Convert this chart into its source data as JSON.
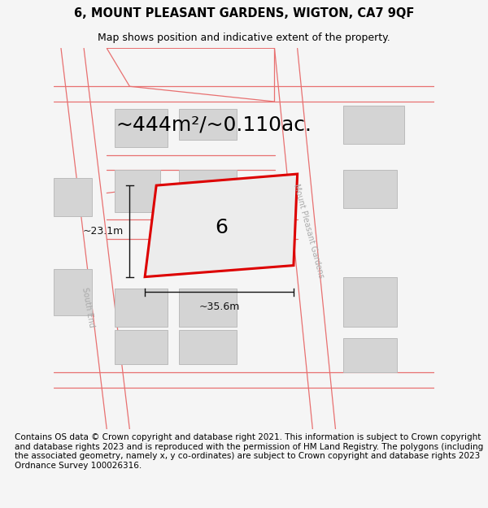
{
  "title": "6, MOUNT PLEASANT GARDENS, WIGTON, CA7 9QF",
  "subtitle": "Map shows position and indicative extent of the property.",
  "area_text": "~444m²/~0.110ac.",
  "width_text": "~35.6m",
  "height_text": "~23.1m",
  "property_number": "6",
  "street_label": "Mount Pleasant Gardens",
  "street_label2": "South End",
  "footer_text": "Contains OS data © Crown copyright and database right 2021. This information is subject to Crown copyright and database rights 2023 and is reproduced with the permission of HM Land Registry. The polygons (including the associated geometry, namely x, y co-ordinates) are subject to Crown copyright and database rights 2023 Ordnance Survey 100026316.",
  "bg_color": "#f5f5f5",
  "map_bg": "#ececec",
  "road_line_color": "#e87070",
  "building_fill": "#d4d4d4",
  "building_edge": "#bbbbbb",
  "property_outline": "#dd0000",
  "property_fill": "#ececec",
  "inner_bldg_fill": "#d0d0d0",
  "inner_bldg_edge": "#bbbbbb",
  "street_label_color": "#aaaaaa",
  "dim_color": "#111111",
  "title_fontsize": 10.5,
  "subtitle_fontsize": 9,
  "area_fontsize": 18,
  "footer_fontsize": 7.5,
  "number_fontsize": 18,
  "street_label_fontsize": 7,
  "dim_fontsize": 9
}
